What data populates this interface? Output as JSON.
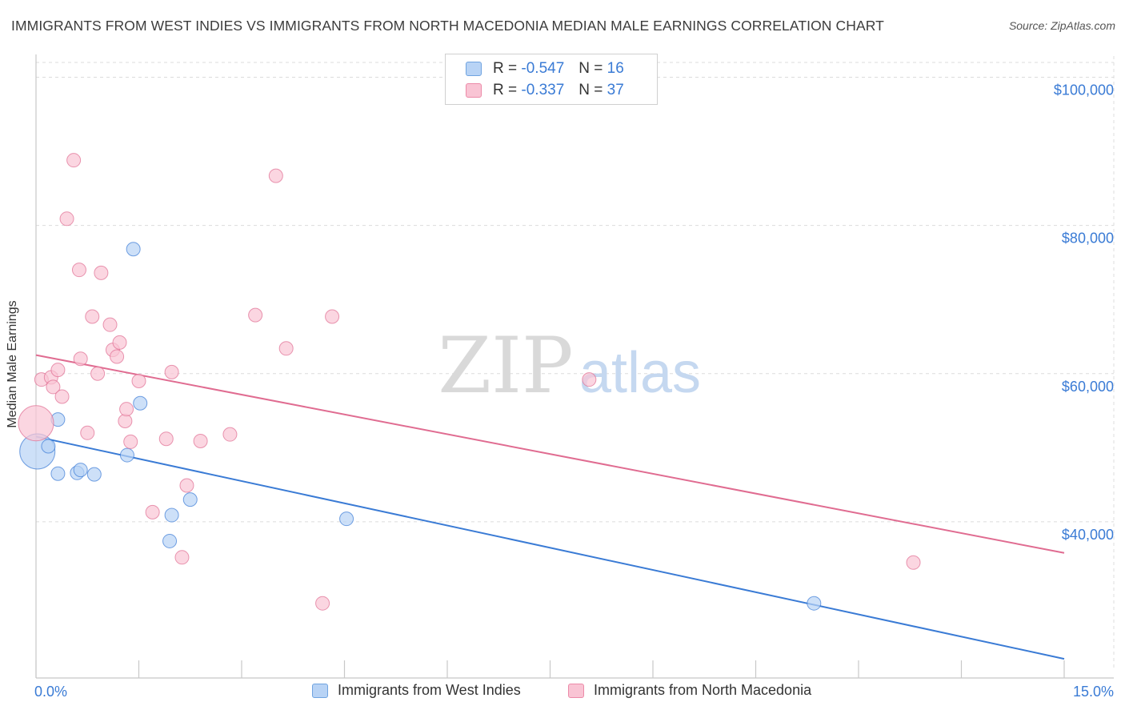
{
  "title": "IMMIGRANTS FROM WEST INDIES VS IMMIGRANTS FROM NORTH MACEDONIA MEDIAN MALE EARNINGS CORRELATION CHART",
  "source": "Source: ZipAtlas.com",
  "watermark": {
    "zip": "ZIP",
    "atlas": "atlas"
  },
  "legend": {
    "r_label": "R =",
    "n_label": "N =",
    "rows": [
      {
        "r": "-0.547",
        "n": "16",
        "color": "#6fa3e0"
      },
      {
        "r": "-0.337",
        "n": "37",
        "color": "#ec8aa8"
      }
    ]
  },
  "chart_data": {
    "type": "scatter",
    "title": "IMMIGRANTS FROM WEST INDIES VS IMMIGRANTS FROM NORTH MACEDONIA MEDIAN MALE EARNINGS CORRELATION CHART",
    "xlabel": "",
    "ylabel": "Median Male Earnings",
    "xlim": [
      0,
      15
    ],
    "ylim": [
      20000,
      102000
    ],
    "x_tick_labels": [
      "0.0%",
      "15.0%"
    ],
    "y_ticks": [
      {
        "value": 40000,
        "label": "$40,000"
      },
      {
        "value": 60000,
        "label": "$60,000"
      },
      {
        "value": 80000,
        "label": "$80,000"
      },
      {
        "value": 100000,
        "label": "$100,000"
      }
    ],
    "series": [
      {
        "name": "Immigrants from West Indies",
        "color": "#3a7bd5",
        "fill": "#b8d3f5",
        "trend": {
          "x0": 0,
          "y0": 51500,
          "x1": 15,
          "y1": 21500
        },
        "points": [
          {
            "x": 0.02,
            "y": 49500,
            "big": true
          },
          {
            "x": 0.18,
            "y": 50200
          },
          {
            "x": 0.32,
            "y": 53800
          },
          {
            "x": 0.32,
            "y": 46500
          },
          {
            "x": 0.6,
            "y": 46600
          },
          {
            "x": 0.65,
            "y": 47000
          },
          {
            "x": 0.85,
            "y": 46400
          },
          {
            "x": 1.33,
            "y": 49000
          },
          {
            "x": 1.52,
            "y": 56000
          },
          {
            "x": 1.42,
            "y": 76800
          },
          {
            "x": 1.95,
            "y": 37400
          },
          {
            "x": 1.98,
            "y": 40900
          },
          {
            "x": 2.25,
            "y": 43000
          },
          {
            "x": 4.53,
            "y": 40400
          },
          {
            "x": 11.35,
            "y": 29000
          }
        ]
      },
      {
        "name": "Immigrants from North Macedonia",
        "color": "#e06c91",
        "fill": "#f9c4d4",
        "trend": {
          "x0": 0,
          "y0": 62500,
          "x1": 15,
          "y1": 35800
        },
        "points": [
          {
            "x": 0.0,
            "y": 53300,
            "big": true
          },
          {
            "x": 0.08,
            "y": 59200
          },
          {
            "x": 0.22,
            "y": 59500
          },
          {
            "x": 0.25,
            "y": 58200
          },
          {
            "x": 0.32,
            "y": 60500
          },
          {
            "x": 0.38,
            "y": 56900
          },
          {
            "x": 0.55,
            "y": 88800
          },
          {
            "x": 0.45,
            "y": 80900
          },
          {
            "x": 0.63,
            "y": 74000
          },
          {
            "x": 0.65,
            "y": 62000
          },
          {
            "x": 0.75,
            "y": 52000
          },
          {
            "x": 0.82,
            "y": 67700
          },
          {
            "x": 0.9,
            "y": 60000
          },
          {
            "x": 0.95,
            "y": 73600
          },
          {
            "x": 1.08,
            "y": 66600
          },
          {
            "x": 1.12,
            "y": 63200
          },
          {
            "x": 1.18,
            "y": 62300
          },
          {
            "x": 1.22,
            "y": 64200
          },
          {
            "x": 1.3,
            "y": 53600
          },
          {
            "x": 1.32,
            "y": 55200
          },
          {
            "x": 1.38,
            "y": 50800
          },
          {
            "x": 1.5,
            "y": 59000
          },
          {
            "x": 1.7,
            "y": 41300
          },
          {
            "x": 1.9,
            "y": 51200
          },
          {
            "x": 1.98,
            "y": 60200
          },
          {
            "x": 2.13,
            "y": 35200
          },
          {
            "x": 2.2,
            "y": 44900
          },
          {
            "x": 2.4,
            "y": 50900
          },
          {
            "x": 2.83,
            "y": 51800
          },
          {
            "x": 3.2,
            "y": 67900
          },
          {
            "x": 3.5,
            "y": 86700
          },
          {
            "x": 3.65,
            "y": 63400
          },
          {
            "x": 4.18,
            "y": 29000
          },
          {
            "x": 4.32,
            "y": 67700
          },
          {
            "x": 8.07,
            "y": 59200
          },
          {
            "x": 12.8,
            "y": 34500
          }
        ]
      }
    ]
  }
}
